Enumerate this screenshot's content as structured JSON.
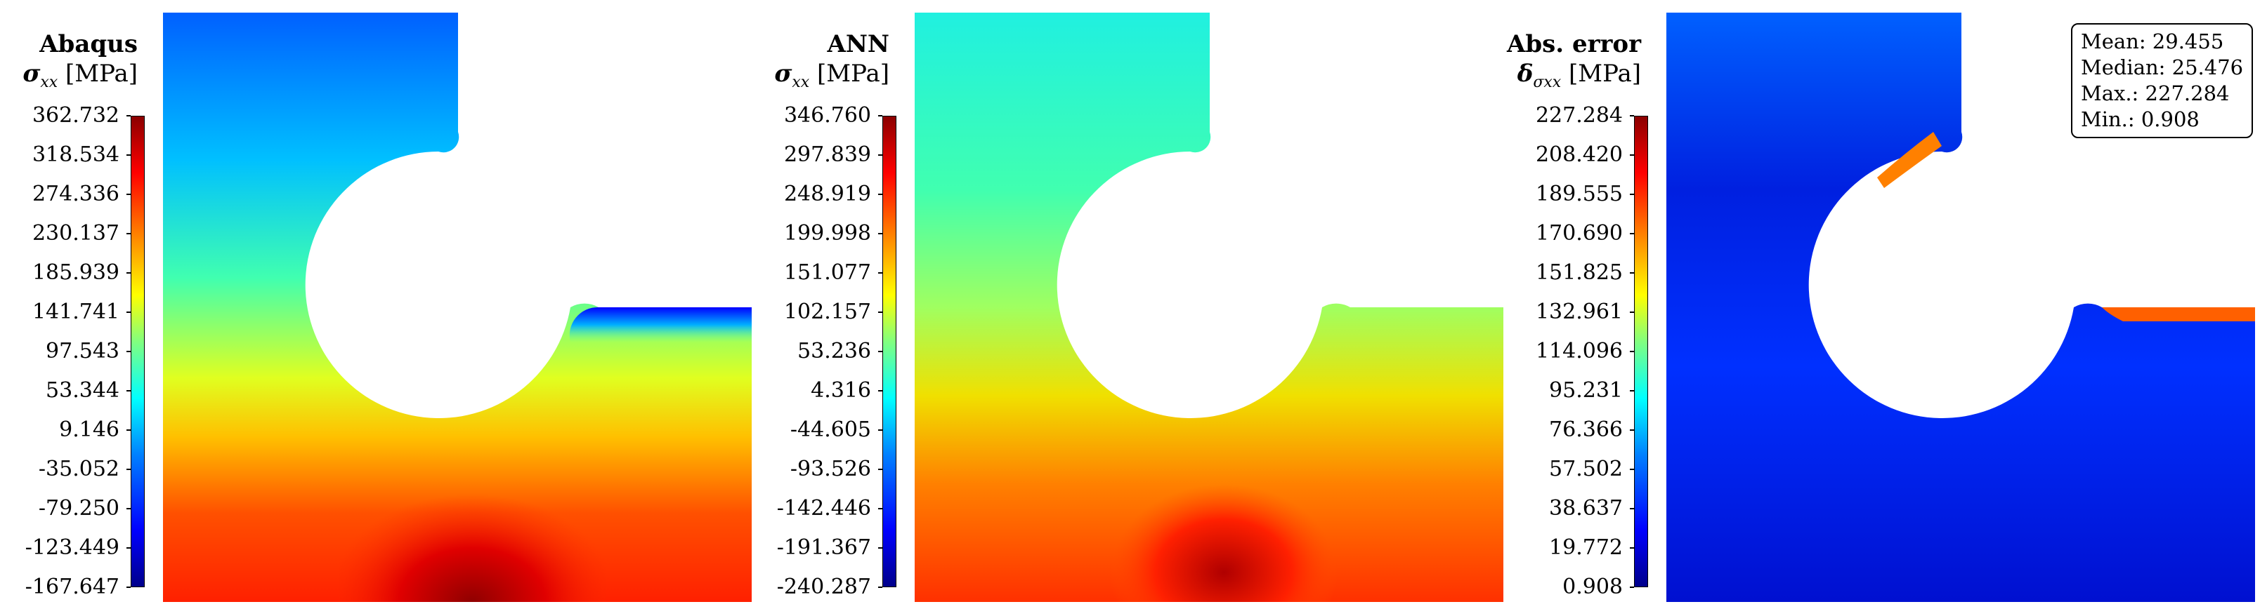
{
  "chart_data": [
    {
      "type": "heatmap",
      "title": "Abaqus",
      "quantity": "σ",
      "quantity_sub": "xx",
      "unit": "[MPa]",
      "colorbar_ticks": [
        "362.732",
        "318.534",
        "274.336",
        "230.137",
        "185.939",
        "141.741",
        "97.543",
        "53.344",
        "9.146",
        "-35.052",
        "-79.250",
        "-123.449",
        "-167.647"
      ],
      "range": [
        -167.647,
        362.732
      ],
      "colormap": "jet",
      "colors": {
        "low": "#00008b",
        "mid": "#ffff00",
        "high": "#8b0000"
      }
    },
    {
      "type": "heatmap",
      "title": "ANN",
      "quantity": "σ",
      "quantity_sub": "xx",
      "unit": "[MPa]",
      "colorbar_ticks": [
        "346.760",
        "297.839",
        "248.919",
        "199.998",
        "151.077",
        "102.157",
        "53.236",
        "4.316",
        "-44.605",
        "-93.526",
        "-142.446",
        "-191.367",
        "-240.287"
      ],
      "range": [
        -240.287,
        346.76
      ],
      "colormap": "jet",
      "colors": {
        "low": "#00008b",
        "mid": "#ffff00",
        "high": "#8b0000"
      }
    },
    {
      "type": "heatmap",
      "title": "Abs. error",
      "quantity": "δ",
      "quantity_sub": "σxx",
      "unit": "[MPa]",
      "colorbar_ticks": [
        "227.284",
        "208.420",
        "189.555",
        "170.690",
        "151.825",
        "132.961",
        "114.096",
        "95.231",
        "76.366",
        "57.502",
        "38.637",
        "19.772",
        "0.908"
      ],
      "range": [
        0.908,
        227.284
      ],
      "colormap": "jet",
      "stats": [
        "Mean: 29.455",
        "Median: 25.476",
        "Max.: 227.284",
        "Min.: 0.908"
      ],
      "colors": {
        "low": "#00008b",
        "mid": "#ffff00",
        "high": "#8b0000"
      }
    }
  ]
}
